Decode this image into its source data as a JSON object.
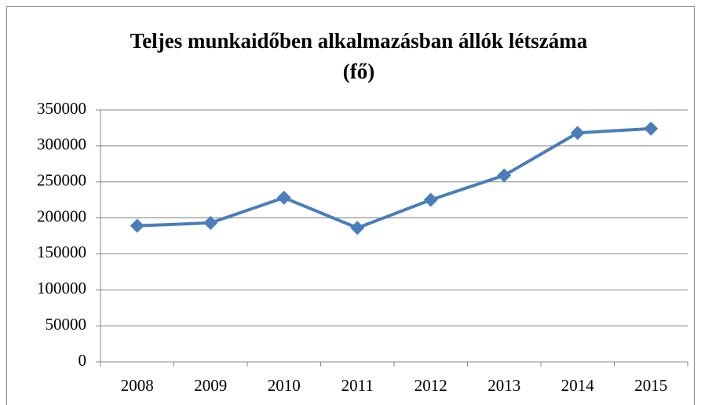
{
  "chart_data": {
    "type": "line",
    "title": [
      "Teljes munkaidőben alkalmazásban állók létszáma",
      "(fő)"
    ],
    "categories": [
      "2008",
      "2009",
      "2010",
      "2011",
      "2012",
      "2013",
      "2014",
      "2015"
    ],
    "values": [
      189000,
      193000,
      228000,
      186000,
      225000,
      259000,
      318000,
      324000
    ],
    "color": "#4a7ebb",
    "ylim": [
      0,
      350000
    ],
    "yticks": [
      0,
      50000,
      100000,
      150000,
      200000,
      250000,
      300000,
      350000
    ],
    "grid": true
  }
}
